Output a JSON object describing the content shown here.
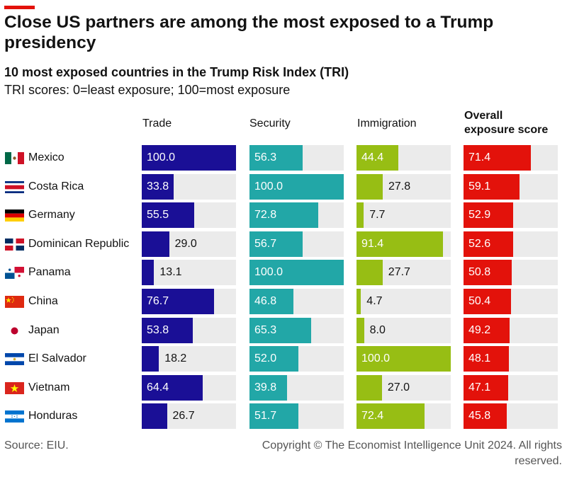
{
  "header": {
    "title": "Close US partners are among the most exposed to a Trump presidency",
    "subtitle": "10 most exposed countries in the Trump Risk Index (TRI)",
    "note": "TRI scores: 0=least exposure; 100=most exposure"
  },
  "chart_data": {
    "type": "bar",
    "title": "Close US partners are among the most exposed to a Trump presidency",
    "xlabel": "",
    "ylabel": "",
    "ylim": [
      0,
      100
    ],
    "categories": [
      "Mexico",
      "Costa Rica",
      "Germany",
      "Dominican Republic",
      "Panama",
      "China",
      "Japan",
      "El Salvador",
      "Vietnam",
      "Honduras"
    ],
    "series": [
      {
        "name": "Trade",
        "color": "#1a0f96",
        "values": [
          100.0,
          33.8,
          55.5,
          29.0,
          13.1,
          76.7,
          53.8,
          18.2,
          64.4,
          26.7
        ],
        "labels": [
          "100.0",
          "33.8",
          "55.5",
          "29.0",
          "13.1",
          "76.7",
          "53.8",
          "18.2",
          "64.4",
          "26.7"
        ]
      },
      {
        "name": "Security",
        "color": "#22a7a7",
        "values": [
          56.3,
          100.0,
          72.8,
          56.7,
          100.0,
          46.8,
          65.3,
          52.0,
          39.8,
          51.7
        ],
        "labels": [
          "56.3",
          "100.0",
          "72.8",
          "56.7",
          "100.0",
          "46.8",
          "65.3",
          "52.0",
          "39.8",
          "51.7"
        ]
      },
      {
        "name": "Immigration",
        "color": "#97be14",
        "values": [
          44.4,
          27.8,
          7.7,
          91.4,
          27.7,
          4.7,
          8.0,
          100.0,
          27.0,
          72.4
        ],
        "labels": [
          "44.4",
          "27.8",
          "7.7",
          "91.4",
          "27.7",
          "4.7",
          "8.0",
          "100.0",
          "27.0",
          "72.4"
        ]
      },
      {
        "name": "Overall exposure score",
        "color": "#e3120b",
        "values": [
          71.4,
          59.1,
          52.9,
          52.6,
          50.8,
          50.4,
          49.2,
          48.1,
          47.1,
          45.8
        ],
        "labels": [
          "71.4",
          "59.1",
          "52.9",
          "52.6",
          "50.8",
          "50.4",
          "49.2",
          "48.1",
          "47.1",
          "45.8"
        ]
      }
    ]
  },
  "columns": {
    "trade": "Trade",
    "security": "Security",
    "immigration": "Immigration",
    "overall_line1": "Overall",
    "overall_line2": "exposure score"
  },
  "flags": [
    "mexico-flag-icon",
    "costa-rica-flag-icon",
    "germany-flag-icon",
    "dominican-republic-flag-icon",
    "panama-flag-icon",
    "china-flag-icon",
    "japan-flag-icon",
    "el-salvador-flag-icon",
    "vietnam-flag-icon",
    "honduras-flag-icon"
  ],
  "footer": {
    "source": "Source: EIU.",
    "copyright_line1": "Copyright © The Economist Intelligence Unit 2024. All rights",
    "copyright_line2": "reserved."
  }
}
